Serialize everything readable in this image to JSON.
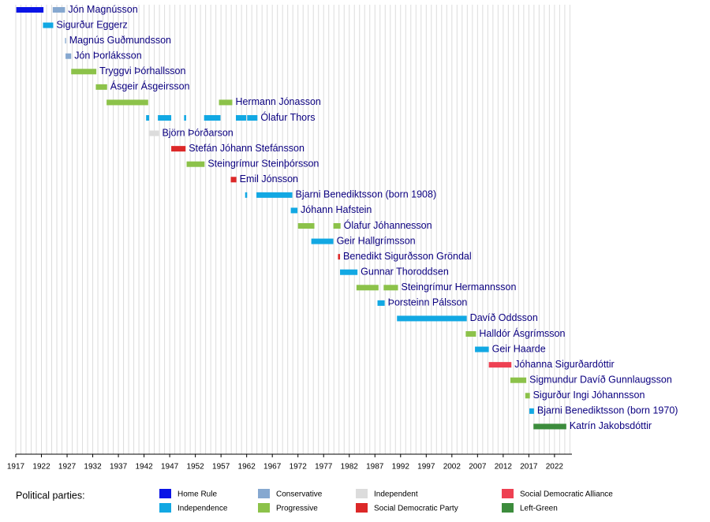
{
  "chart_data": {
    "type": "timeline",
    "legend_title": "Political parties:",
    "xlim": [
      1917,
      2025.4
    ],
    "xticks": [
      1917,
      1922,
      1927,
      1932,
      1937,
      1942,
      1947,
      1952,
      1957,
      1962,
      1967,
      1972,
      1977,
      1982,
      1987,
      1992,
      1997,
      2002,
      2007,
      2012,
      2017,
      2022
    ],
    "grid": true,
    "minor_grid_interval": 1,
    "parties": [
      {
        "name": "Home Rule",
        "color": "#0a14e6"
      },
      {
        "name": "Independence",
        "color": "#12a8e3"
      },
      {
        "name": "Conservative",
        "color": "#86a8d0"
      },
      {
        "name": "Progressive",
        "color": "#8cc24a"
      },
      {
        "name": "Independent",
        "color": "#dcdcdc"
      },
      {
        "name": "Social Democratic Party",
        "color": "#dc2828"
      },
      {
        "name": "Social Democratic Alliance",
        "color": "#ee4052"
      },
      {
        "name": "Left-Green",
        "color": "#3c8c3c"
      }
    ],
    "rows": [
      {
        "name": "Jón Magnússon",
        "terms": [
          {
            "start": 1917.1,
            "end": 1922.4,
            "party": 0
          },
          {
            "start": 1924.2,
            "end": 1926.6,
            "party": 2
          }
        ]
      },
      {
        "name": "Sigurður Eggerz",
        "terms": [
          {
            "start": 1922.3,
            "end": 1924.3,
            "party": 1
          }
        ]
      },
      {
        "name": "Magnús Guðmundsson",
        "terms": [
          {
            "start": 1926.6,
            "end": 1926.8,
            "party": 2
          }
        ]
      },
      {
        "name": "Jón Þorláksson",
        "terms": [
          {
            "start": 1926.7,
            "end": 1927.8,
            "party": 2
          }
        ]
      },
      {
        "name": "Tryggvi Þórhallsson",
        "terms": [
          {
            "start": 1927.8,
            "end": 1932.7,
            "party": 3
          }
        ]
      },
      {
        "name": "Ásgeir Ásgeirsson",
        "terms": [
          {
            "start": 1932.6,
            "end": 1934.8,
            "party": 3
          }
        ]
      },
      {
        "name": "Hermann Jónasson",
        "terms": [
          {
            "start": 1934.7,
            "end": 1942.8,
            "party": 3
          },
          {
            "start": 1956.6,
            "end": 1959.2,
            "party": 3
          }
        ]
      },
      {
        "name": "Ólafur Thors",
        "terms": [
          {
            "start": 1942.4,
            "end": 1943.0,
            "party": 1
          },
          {
            "start": 1944.7,
            "end": 1947.3,
            "party": 1
          },
          {
            "start": 1949.8,
            "end": 1950.2,
            "party": 1
          },
          {
            "start": 1953.7,
            "end": 1956.9,
            "party": 1
          },
          {
            "start": 1959.9,
            "end": 1961.9,
            "party": 1
          },
          {
            "start": 1962.1,
            "end": 1964.1,
            "party": 1
          }
        ]
      },
      {
        "name": "Björn Þórðarson",
        "terms": [
          {
            "start": 1942.9,
            "end": 1944.9,
            "party": 4
          }
        ]
      },
      {
        "name": "Stefán Jóhann Stefánsson",
        "terms": [
          {
            "start": 1947.3,
            "end": 1950.1,
            "party": 5
          }
        ]
      },
      {
        "name": "Steingrímur Steinþórsson",
        "terms": [
          {
            "start": 1950.3,
            "end": 1953.8,
            "party": 3
          }
        ]
      },
      {
        "name": "Emil Jónsson",
        "terms": [
          {
            "start": 1958.9,
            "end": 1960.0,
            "party": 5
          }
        ]
      },
      {
        "name": "Bjarni Benediktsson (born 1908)",
        "terms": [
          {
            "start": 1961.7,
            "end": 1962.1,
            "party": 1
          },
          {
            "start": 1963.9,
            "end": 1970.9,
            "party": 1
          }
        ]
      },
      {
        "name": "Jóhann Hafstein",
        "terms": [
          {
            "start": 1970.6,
            "end": 1971.9,
            "party": 1
          }
        ]
      },
      {
        "name": "Ólafur Jóhannesson",
        "terms": [
          {
            "start": 1972.0,
            "end": 1975.2,
            "party": 3
          },
          {
            "start": 1978.9,
            "end": 1980.3,
            "party": 3
          }
        ]
      },
      {
        "name": "Geir Hallgrímsson",
        "terms": [
          {
            "start": 1974.6,
            "end": 1978.9,
            "party": 1
          }
        ]
      },
      {
        "name": "Benedikt Sigurðsson Gröndal",
        "terms": [
          {
            "start": 1979.8,
            "end": 1980.2,
            "party": 5
          }
        ]
      },
      {
        "name": "Gunnar Thoroddsen",
        "terms": [
          {
            "start": 1980.2,
            "end": 1983.6,
            "party": 1
          }
        ]
      },
      {
        "name": "Steingrímur Hermannsson",
        "terms": [
          {
            "start": 1983.4,
            "end": 1987.7,
            "party": 3
          },
          {
            "start": 1988.7,
            "end": 1991.5,
            "party": 3
          }
        ]
      },
      {
        "name": "Þorsteinn Pálsson",
        "terms": [
          {
            "start": 1987.5,
            "end": 1988.9,
            "party": 1
          }
        ]
      },
      {
        "name": "Davíð Oddsson",
        "terms": [
          {
            "start": 1991.3,
            "end": 2004.9,
            "party": 1
          }
        ]
      },
      {
        "name": "Halldór Ásgrímsson",
        "terms": [
          {
            "start": 2004.7,
            "end": 2006.7,
            "party": 3
          }
        ]
      },
      {
        "name": "Geir Haarde",
        "terms": [
          {
            "start": 2006.5,
            "end": 2009.2,
            "party": 1
          }
        ]
      },
      {
        "name": "Jóhanna Sigurðardóttir",
        "terms": [
          {
            "start": 2009.2,
            "end": 2013.6,
            "party": 6
          }
        ]
      },
      {
        "name": "Sigmundur Davíð Gunnlaugsson",
        "terms": [
          {
            "start": 2013.4,
            "end": 2016.5,
            "party": 3
          }
        ]
      },
      {
        "name": "Sigurður Ingi Jóhannsson",
        "terms": [
          {
            "start": 2016.3,
            "end": 2017.2,
            "party": 3
          }
        ]
      },
      {
        "name": "Bjarni Benediktsson (born 1970)",
        "terms": [
          {
            "start": 2017.1,
            "end": 2018.0,
            "party": 1
          }
        ]
      },
      {
        "name": "Katrín Jakobsdóttir",
        "terms": [
          {
            "start": 2017.9,
            "end": 2024.3,
            "party": 7
          }
        ]
      }
    ]
  }
}
